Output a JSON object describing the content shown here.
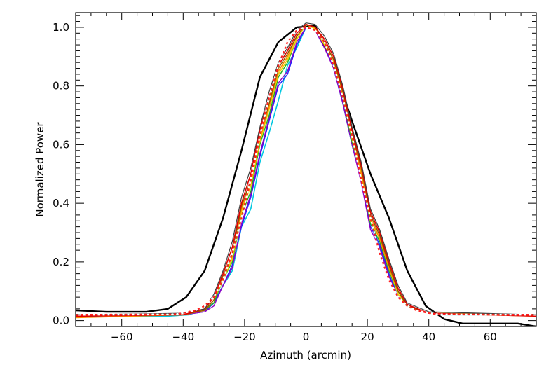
{
  "chart_data": {
    "type": "line",
    "title": "",
    "xlabel": "Azimuth (arcmin)",
    "ylabel": "Normalized Power",
    "xlim": [
      -75,
      75
    ],
    "ylim": [
      -0.02,
      1.05
    ],
    "xticks": [
      -60,
      -40,
      -20,
      0,
      20,
      40,
      60
    ],
    "xtick_labels": [
      "−60",
      "−40",
      "−20",
      "0",
      "20",
      "40",
      "60"
    ],
    "yticks": [
      0.0,
      0.2,
      0.4,
      0.6,
      0.8,
      1.0
    ],
    "ytick_labels": [
      "0.0",
      "0.2",
      "0.4",
      "0.6",
      "0.8",
      "1.0"
    ],
    "grid": false,
    "series": [
      {
        "color": "#000000",
        "width": 2.4,
        "dash": "",
        "x": [
          -75,
          -65,
          -58,
          -52,
          -45,
          -39,
          -33,
          -27,
          -21,
          -15,
          -9,
          -3,
          3,
          9,
          15,
          21,
          27,
          33,
          39,
          45,
          51,
          57,
          63,
          69,
          75
        ],
        "y": [
          0.035,
          0.03,
          0.03,
          0.03,
          0.04,
          0.08,
          0.17,
          0.35,
          0.58,
          0.83,
          0.95,
          1.0,
          1.005,
          0.87,
          0.68,
          0.5,
          0.35,
          0.17,
          0.05,
          0.005,
          -0.01,
          -0.01,
          -0.01,
          -0.01,
          -0.02
        ]
      },
      {
        "color": "#00c8e0",
        "width": 1.6,
        "dash": "",
        "x": [
          -75,
          -45,
          -38,
          -33,
          -30,
          -27,
          -24,
          -21,
          -18,
          -15,
          -12,
          -9,
          -6,
          -3,
          0,
          3,
          6,
          9,
          12,
          15,
          18,
          21,
          24,
          27,
          30,
          33,
          38,
          45,
          75
        ],
        "y": [
          0.015,
          0.015,
          0.02,
          0.04,
          0.06,
          0.12,
          0.17,
          0.32,
          0.38,
          0.54,
          0.64,
          0.75,
          0.87,
          0.93,
          1.0,
          0.99,
          0.95,
          0.86,
          0.74,
          0.6,
          0.48,
          0.35,
          0.25,
          0.15,
          0.1,
          0.055,
          0.03,
          0.02,
          0.02
        ]
      },
      {
        "color": "#2020ff",
        "width": 1.4,
        "dash": "",
        "x": [
          -75,
          -40,
          -33,
          -30,
          -27,
          -24,
          -21,
          -18,
          -15,
          -12,
          -9,
          -6,
          -3,
          0,
          3,
          6,
          9,
          12,
          15,
          18,
          21,
          24,
          27,
          30,
          33,
          40,
          75
        ],
        "y": [
          0.015,
          0.02,
          0.03,
          0.06,
          0.12,
          0.19,
          0.32,
          0.42,
          0.56,
          0.68,
          0.8,
          0.84,
          0.94,
          1.0,
          0.99,
          0.93,
          0.87,
          0.75,
          0.6,
          0.48,
          0.32,
          0.26,
          0.16,
          0.08,
          0.05,
          0.025,
          0.02
        ]
      },
      {
        "color": "#9000c0",
        "width": 1.4,
        "dash": "",
        "x": [
          -75,
          -40,
          -33,
          -30,
          -27,
          -24,
          -21,
          -18,
          -15,
          -12,
          -9,
          -6,
          -3,
          0,
          3,
          6,
          9,
          12,
          15,
          18,
          21,
          24,
          27,
          30,
          33,
          40,
          75
        ],
        "y": [
          0.015,
          0.02,
          0.03,
          0.05,
          0.12,
          0.18,
          0.33,
          0.43,
          0.57,
          0.69,
          0.81,
          0.85,
          0.95,
          1.0,
          0.99,
          0.93,
          0.86,
          0.74,
          0.6,
          0.47,
          0.31,
          0.25,
          0.15,
          0.08,
          0.05,
          0.025,
          0.02
        ]
      },
      {
        "color": "#20b020",
        "width": 1.4,
        "dash": "",
        "x": [
          -75,
          -40,
          -33,
          -30,
          -27,
          -24,
          -21,
          -18,
          -15,
          -12,
          -9,
          -6,
          -3,
          0,
          3,
          6,
          9,
          12,
          15,
          18,
          21,
          24,
          27,
          30,
          33,
          40,
          75
        ],
        "y": [
          0.015,
          0.02,
          0.035,
          0.06,
          0.14,
          0.2,
          0.36,
          0.44,
          0.6,
          0.7,
          0.83,
          0.88,
          0.96,
          1.01,
          0.995,
          0.94,
          0.88,
          0.76,
          0.61,
          0.5,
          0.33,
          0.27,
          0.17,
          0.09,
          0.05,
          0.025,
          0.02
        ]
      },
      {
        "color": "#f0d000",
        "width": 1.6,
        "dash": "",
        "x": [
          -75,
          -40,
          -33,
          -30,
          -27,
          -24,
          -21,
          -18,
          -15,
          -12,
          -9,
          -6,
          -3,
          0,
          3,
          6,
          9,
          12,
          15,
          18,
          21,
          24,
          27,
          30,
          33,
          40,
          75
        ],
        "y": [
          0.02,
          0.02,
          0.035,
          0.07,
          0.14,
          0.21,
          0.37,
          0.46,
          0.61,
          0.72,
          0.84,
          0.89,
          0.96,
          1.01,
          0.995,
          0.94,
          0.88,
          0.77,
          0.62,
          0.5,
          0.34,
          0.28,
          0.18,
          0.09,
          0.05,
          0.025,
          0.02
        ]
      },
      {
        "color": "#ff8c00",
        "width": 1.6,
        "dash": "",
        "x": [
          -75,
          -40,
          -33,
          -30,
          -27,
          -24,
          -21,
          -18,
          -15,
          -12,
          -9,
          -6,
          -3,
          0,
          3,
          6,
          9,
          12,
          15,
          18,
          21,
          24,
          27,
          30,
          33,
          40,
          75
        ],
        "y": [
          0.01,
          0.02,
          0.035,
          0.07,
          0.15,
          0.22,
          0.38,
          0.47,
          0.62,
          0.73,
          0.85,
          0.9,
          0.97,
          1.01,
          1.0,
          0.95,
          0.89,
          0.78,
          0.63,
          0.51,
          0.35,
          0.28,
          0.18,
          0.1,
          0.05,
          0.025,
          0.015
        ]
      },
      {
        "color": "#8b5a00",
        "width": 1.4,
        "dash": "",
        "x": [
          -75,
          -40,
          -33,
          -30,
          -27,
          -24,
          -21,
          -18,
          -15,
          -12,
          -9,
          -6,
          -3,
          0,
          3,
          6,
          9,
          12,
          15,
          18,
          21,
          24,
          27,
          30,
          33,
          40,
          75
        ],
        "y": [
          0.015,
          0.02,
          0.035,
          0.07,
          0.15,
          0.23,
          0.39,
          0.48,
          0.63,
          0.74,
          0.86,
          0.91,
          0.97,
          1.01,
          1.0,
          0.95,
          0.89,
          0.78,
          0.64,
          0.52,
          0.36,
          0.29,
          0.19,
          0.1,
          0.05,
          0.025,
          0.02
        ]
      },
      {
        "color": "#e00000",
        "width": 1.6,
        "dash": "",
        "x": [
          -75,
          -40,
          -33,
          -30,
          -27,
          -24,
          -21,
          -18,
          -15,
          -12,
          -9,
          -6,
          -3,
          0,
          3,
          6,
          9,
          12,
          15,
          18,
          21,
          24,
          27,
          30,
          33,
          40,
          75
        ],
        "y": [
          0.015,
          0.02,
          0.04,
          0.08,
          0.16,
          0.25,
          0.4,
          0.5,
          0.65,
          0.76,
          0.87,
          0.92,
          0.98,
          1.01,
          1.0,
          0.96,
          0.9,
          0.79,
          0.65,
          0.53,
          0.37,
          0.3,
          0.2,
          0.11,
          0.055,
          0.025,
          0.015
        ]
      },
      {
        "color": "#404040",
        "width": 1.2,
        "dash": "",
        "x": [
          -75,
          -40,
          -33,
          -30,
          -27,
          -24,
          -21,
          -18,
          -15,
          -12,
          -9,
          -6,
          -3,
          0,
          3,
          6,
          9,
          12,
          15,
          18,
          21,
          24,
          27,
          30,
          33,
          40,
          75
        ],
        "y": [
          0.02,
          0.025,
          0.04,
          0.09,
          0.17,
          0.27,
          0.42,
          0.52,
          0.66,
          0.78,
          0.88,
          0.93,
          0.99,
          1.015,
          1.01,
          0.97,
          0.91,
          0.8,
          0.66,
          0.54,
          0.38,
          0.31,
          0.21,
          0.12,
          0.06,
          0.03,
          0.02
        ]
      },
      {
        "color": "#ff2020",
        "width": 2.4,
        "dash": "3,4",
        "x": [
          -75,
          -45,
          -42,
          -39,
          -36,
          -33,
          -30,
          -27,
          -24,
          -21,
          -18,
          -15,
          -12,
          -9,
          -6,
          -3,
          0,
          3,
          6,
          9,
          12,
          15,
          18,
          21,
          24,
          27,
          30,
          33,
          36,
          39,
          42,
          45,
          75
        ],
        "y": [
          0.02,
          0.021,
          0.022,
          0.028,
          0.035,
          0.05,
          0.08,
          0.14,
          0.23,
          0.35,
          0.48,
          0.63,
          0.76,
          0.87,
          0.95,
          0.99,
          1.0,
          0.99,
          0.95,
          0.87,
          0.76,
          0.63,
          0.48,
          0.35,
          0.23,
          0.14,
          0.08,
          0.05,
          0.035,
          0.028,
          0.022,
          0.021,
          0.02
        ]
      },
      {
        "color": "#ffffff",
        "width": 2.4,
        "dash": "3,4",
        "offset": "3.5",
        "x": [
          -75,
          -45,
          -42,
          -39,
          -36,
          -33,
          -30,
          -27,
          -24,
          -21,
          -18,
          -15,
          -12,
          -9,
          -6,
          -3,
          0,
          3,
          6,
          9,
          12,
          15,
          18,
          21,
          24,
          27,
          30,
          33,
          36,
          39,
          42,
          45,
          75
        ],
        "y": [
          0.02,
          0.021,
          0.022,
          0.028,
          0.035,
          0.05,
          0.08,
          0.14,
          0.23,
          0.35,
          0.48,
          0.63,
          0.76,
          0.87,
          0.95,
          0.99,
          1.0,
          0.99,
          0.95,
          0.87,
          0.76,
          0.63,
          0.48,
          0.35,
          0.23,
          0.14,
          0.08,
          0.05,
          0.035,
          0.028,
          0.022,
          0.021,
          0.02
        ]
      }
    ]
  }
}
